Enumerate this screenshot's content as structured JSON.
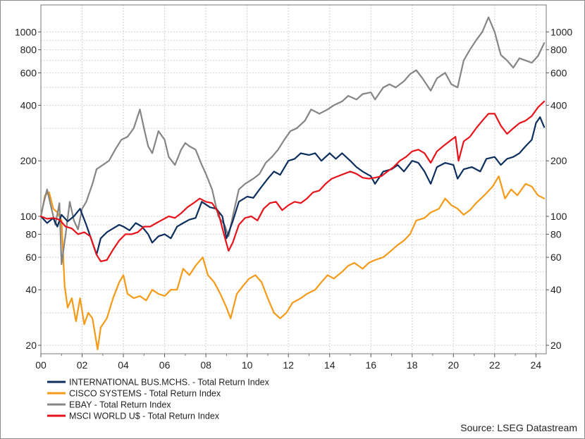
{
  "chart_data": {
    "type": "line",
    "y_scale": "log",
    "x_range": [
      2000.0,
      2024.5
    ],
    "y_range": [
      18,
      1400
    ],
    "grid": true,
    "legend_position": "bottom-left",
    "source": "Source: LSEG Datastream",
    "x_ticks": [
      {
        "label": "00",
        "value": 2000
      },
      {
        "label": "02",
        "value": 2002
      },
      {
        "label": "04",
        "value": 2004
      },
      {
        "label": "06",
        "value": 2006
      },
      {
        "label": "08",
        "value": 2008
      },
      {
        "label": "10",
        "value": 2010
      },
      {
        "label": "12",
        "value": 2012
      },
      {
        "label": "14",
        "value": 2014
      },
      {
        "label": "16",
        "value": 2016
      },
      {
        "label": "18",
        "value": 2018
      },
      {
        "label": "20",
        "value": 2020
      },
      {
        "label": "22",
        "value": 2022
      },
      {
        "label": "24",
        "value": 2024
      }
    ],
    "y_ticks_labeled": [
      {
        "label": "20",
        "value": 20
      },
      {
        "label": "40",
        "value": 40
      },
      {
        "label": "60",
        "value": 60
      },
      {
        "label": "80",
        "value": 80
      },
      {
        "label": "100",
        "value": 100
      },
      {
        "label": "200",
        "value": 200
      },
      {
        "label": "400",
        "value": 400
      },
      {
        "label": "600",
        "value": 600
      },
      {
        "label": "800",
        "value": 800
      },
      {
        "label": "1000",
        "value": 1000
      }
    ],
    "y_grid_values": [
      20,
      30,
      40,
      50,
      60,
      70,
      80,
      90,
      100,
      200,
      300,
      400,
      500,
      600,
      700,
      800,
      900,
      1000
    ],
    "series": [
      {
        "name": "INTERNATIONAL BUS.MCHS. - Total Return Index",
        "color": "#0d2f5e",
        "x": [
          2000.0,
          2000.3,
          2000.6,
          2000.8,
          2001.0,
          2001.3,
          2001.6,
          2001.9,
          2002.2,
          2002.5,
          2002.7,
          2002.9,
          2003.2,
          2003.5,
          2003.8,
          2004.0,
          2004.3,
          2004.6,
          2004.9,
          2005.2,
          2005.4,
          2005.7,
          2006.0,
          2006.3,
          2006.6,
          2006.9,
          2007.2,
          2007.5,
          2007.8,
          2008.2,
          2008.5,
          2008.8,
          2009.0,
          2009.3,
          2009.6,
          2010.0,
          2010.3,
          2010.6,
          2011.0,
          2011.3,
          2011.6,
          2012.0,
          2012.3,
          2012.6,
          2013.0,
          2013.3,
          2013.6,
          2014.0,
          2014.3,
          2014.6,
          2015.0,
          2015.3,
          2015.6,
          2016.0,
          2016.2,
          2016.6,
          2017.0,
          2017.3,
          2017.6,
          2018.0,
          2018.3,
          2018.6,
          2018.9,
          2019.2,
          2019.6,
          2020.0,
          2020.2,
          2020.5,
          2020.9,
          2021.3,
          2021.6,
          2022.0,
          2022.3,
          2022.6,
          2022.9,
          2023.2,
          2023.5,
          2023.8,
          2024.0,
          2024.2,
          2024.4
        ],
        "y": [
          100,
          92,
          98,
          88,
          102,
          94,
          100,
          110,
          90,
          72,
          62,
          76,
          82,
          86,
          90,
          88,
          84,
          92,
          88,
          80,
          72,
          78,
          80,
          76,
          88,
          92,
          96,
          98,
          120,
          112,
          110,
          100,
          76,
          94,
          120,
          128,
          126,
          140,
          160,
          175,
          168,
          200,
          205,
          220,
          215,
          220,
          200,
          220,
          205,
          220,
          200,
          185,
          175,
          165,
          150,
          175,
          180,
          190,
          175,
          200,
          195,
          175,
          150,
          185,
          195,
          190,
          160,
          180,
          185,
          175,
          205,
          210,
          190,
          205,
          210,
          220,
          240,
          260,
          320,
          345,
          305
        ]
      },
      {
        "name": "CISCO SYSTEMS - Total Return Index",
        "color": "#f59a16",
        "x": [
          2000.0,
          2000.2,
          2000.4,
          2000.6,
          2000.8,
          2001.0,
          2001.15,
          2001.3,
          2001.5,
          2001.7,
          2001.9,
          2002.1,
          2002.3,
          2002.5,
          2002.75,
          2002.9,
          2003.2,
          2003.5,
          2003.8,
          2004.0,
          2004.2,
          2004.5,
          2004.8,
          2005.1,
          2005.4,
          2005.7,
          2006.0,
          2006.3,
          2006.6,
          2006.9,
          2007.2,
          2007.5,
          2007.85,
          2008.1,
          2008.4,
          2008.7,
          2009.0,
          2009.2,
          2009.5,
          2009.8,
          2010.1,
          2010.4,
          2010.7,
          2011.0,
          2011.3,
          2011.6,
          2011.9,
          2012.2,
          2012.6,
          2012.9,
          2013.3,
          2013.6,
          2013.9,
          2014.2,
          2014.6,
          2014.9,
          2015.2,
          2015.6,
          2015.9,
          2016.2,
          2016.6,
          2016.9,
          2017.3,
          2017.6,
          2017.9,
          2018.2,
          2018.6,
          2018.9,
          2019.3,
          2019.6,
          2019.9,
          2020.2,
          2020.5,
          2020.8,
          2021.1,
          2021.5,
          2021.9,
          2022.2,
          2022.5,
          2022.8,
          2023.1,
          2023.5,
          2023.8,
          2024.1,
          2024.4
        ],
        "y": [
          100,
          130,
          135,
          110,
          105,
          95,
          42,
          32,
          36,
          27,
          36,
          26,
          30,
          28,
          19,
          25,
          28,
          36,
          44,
          48,
          38,
          36,
          37,
          35,
          40,
          38,
          37,
          40,
          40,
          52,
          48,
          54,
          60,
          48,
          44,
          38,
          32,
          28,
          38,
          42,
          46,
          48,
          44,
          36,
          30,
          28,
          30,
          34,
          36,
          38,
          40,
          44,
          48,
          46,
          50,
          54,
          56,
          52,
          56,
          58,
          60,
          64,
          70,
          74,
          80,
          95,
          98,
          105,
          110,
          125,
          115,
          110,
          102,
          108,
          118,
          130,
          145,
          165,
          125,
          140,
          130,
          150,
          145,
          130,
          125
        ]
      },
      {
        "name": "EBAY - Total Return Index",
        "color": "#858585",
        "x": [
          2000.0,
          2000.15,
          2000.3,
          2000.5,
          2000.7,
          2000.9,
          2001.0,
          2001.2,
          2001.4,
          2001.6,
          2001.8,
          2002.0,
          2002.2,
          2002.5,
          2002.7,
          2003.0,
          2003.3,
          2003.6,
          2003.9,
          2004.2,
          2004.5,
          2004.8,
          2005.0,
          2005.2,
          2005.4,
          2005.7,
          2006.0,
          2006.2,
          2006.5,
          2006.8,
          2007.0,
          2007.2,
          2007.5,
          2007.8,
          2008.0,
          2008.3,
          2008.6,
          2008.9,
          2009.1,
          2009.3,
          2009.6,
          2009.9,
          2010.3,
          2010.6,
          2010.9,
          2011.2,
          2011.5,
          2011.8,
          2012.1,
          2012.4,
          2012.8,
          2013.1,
          2013.5,
          2013.9,
          2014.2,
          2014.6,
          2014.9,
          2015.3,
          2015.6,
          2016.0,
          2016.2,
          2016.6,
          2016.9,
          2017.2,
          2017.6,
          2017.9,
          2018.2,
          2018.5,
          2018.9,
          2019.2,
          2019.6,
          2019.9,
          2020.2,
          2020.5,
          2020.8,
          2021.1,
          2021.4,
          2021.7,
          2022.0,
          2022.3,
          2022.6,
          2022.9,
          2023.2,
          2023.5,
          2023.8,
          2024.1,
          2024.4
        ],
        "y": [
          100,
          120,
          140,
          112,
          90,
          118,
          55,
          80,
          120,
          95,
          85,
          110,
          120,
          150,
          180,
          190,
          200,
          230,
          260,
          270,
          300,
          380,
          300,
          240,
          220,
          290,
          260,
          210,
          190,
          230,
          250,
          240,
          230,
          190,
          170,
          140,
          100,
          90,
          78,
          100,
          140,
          150,
          160,
          170,
          195,
          210,
          230,
          260,
          290,
          300,
          330,
          380,
          360,
          380,
          400,
          420,
          450,
          430,
          460,
          470,
          430,
          500,
          520,
          500,
          540,
          590,
          620,
          560,
          480,
          560,
          600,
          520,
          500,
          700,
          800,
          900,
          1000,
          1200,
          1000,
          750,
          700,
          640,
          720,
          700,
          680,
          740,
          870
        ]
      },
      {
        "name": "MSCI WORLD U$ - Total Return Index",
        "color": "#e8121b",
        "x": [
          2000.0,
          2000.3,
          2000.6,
          2000.9,
          2001.2,
          2001.5,
          2001.8,
          2002.1,
          2002.4,
          2002.7,
          2002.9,
          2003.2,
          2003.5,
          2003.8,
          2004.1,
          2004.4,
          2004.7,
          2005.0,
          2005.3,
          2005.6,
          2005.9,
          2006.2,
          2006.5,
          2006.8,
          2007.1,
          2007.4,
          2007.7,
          2008.0,
          2008.3,
          2008.6,
          2008.9,
          2009.1,
          2009.3,
          2009.6,
          2009.9,
          2010.2,
          2010.5,
          2010.8,
          2011.1,
          2011.4,
          2011.7,
          2012.0,
          2012.3,
          2012.6,
          2012.9,
          2013.2,
          2013.5,
          2013.8,
          2014.1,
          2014.4,
          2014.7,
          2015.0,
          2015.3,
          2015.6,
          2015.9,
          2016.2,
          2016.5,
          2016.8,
          2017.1,
          2017.4,
          2017.7,
          2018.0,
          2018.3,
          2018.6,
          2018.9,
          2019.2,
          2019.5,
          2019.8,
          2020.1,
          2020.25,
          2020.5,
          2020.8,
          2021.1,
          2021.4,
          2021.7,
          2022.0,
          2022.3,
          2022.6,
          2022.9,
          2023.2,
          2023.5,
          2023.8,
          2024.1,
          2024.4
        ],
        "y": [
          100,
          97,
          98,
          96,
          88,
          86,
          80,
          82,
          78,
          62,
          57,
          58,
          66,
          74,
          80,
          80,
          82,
          88,
          88,
          92,
          96,
          100,
          98,
          104,
          112,
          118,
          125,
          120,
          118,
          105,
          78,
          65,
          72,
          90,
          98,
          100,
          95,
          110,
          118,
          120,
          108,
          115,
          120,
          118,
          125,
          135,
          138,
          150,
          160,
          165,
          170,
          175,
          170,
          162,
          160,
          162,
          165,
          175,
          185,
          200,
          210,
          225,
          230,
          220,
          195,
          225,
          240,
          255,
          270,
          200,
          255,
          270,
          300,
          330,
          360,
          360,
          310,
          280,
          300,
          320,
          330,
          350,
          390,
          420
        ]
      }
    ]
  }
}
